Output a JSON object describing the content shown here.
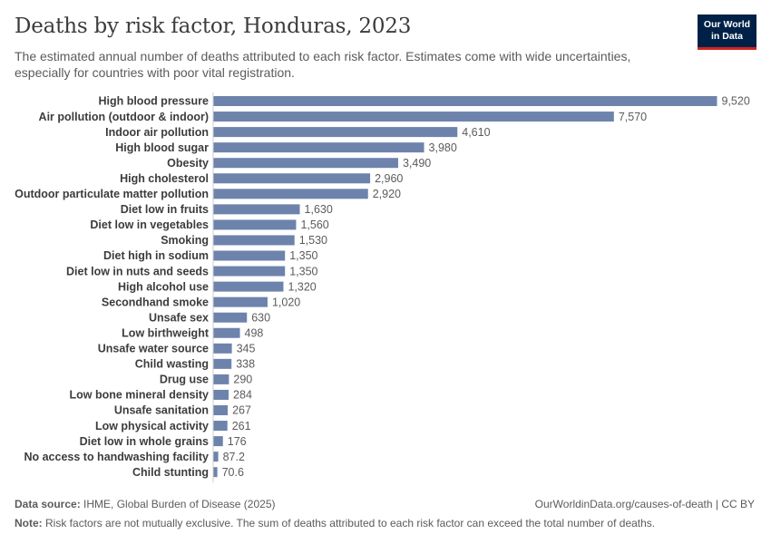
{
  "header": {
    "title": "Deaths by risk factor, Honduras, 2023",
    "subtitle": "The estimated annual number of deaths attributed to each risk factor. Estimates come with wide uncertainties, especially for countries with poor vital registration.",
    "logo_line1": "Our World",
    "logo_line2": "in Data"
  },
  "footer": {
    "source_label": "Data source:",
    "source_text": "IHME, Global Burden of Disease (2025)",
    "url_text": "OurWorldinData.org/causes-of-death | CC BY",
    "note_label": "Note:",
    "note_text": "Risk factors are not mutually exclusive. The sum of deaths attributed to each risk factor can exceed the total number of deaths."
  },
  "colors": {
    "bar": "#6d83ac",
    "axis": "#cccccc",
    "label": "#3c3c3c",
    "value": "#5b5b5b"
  },
  "chart_data": {
    "type": "bar",
    "orientation": "horizontal",
    "xlim": [
      0,
      9520
    ],
    "grid": false,
    "categories": [
      "High blood pressure",
      "Air pollution (outdoor & indoor)",
      "Indoor air pollution",
      "High blood sugar",
      "Obesity",
      "High cholesterol",
      "Outdoor particulate matter pollution",
      "Diet low in fruits",
      "Diet low in vegetables",
      "Smoking",
      "Diet high in sodium",
      "Diet low in nuts and seeds",
      "High alcohol use",
      "Secondhand smoke",
      "Unsafe sex",
      "Low birthweight",
      "Unsafe water source",
      "Child wasting",
      "Drug use",
      "Low bone mineral density",
      "Unsafe sanitation",
      "Low physical activity",
      "Diet low in whole grains",
      "No access to handwashing facility",
      "Child stunting"
    ],
    "values": [
      9520,
      7570,
      4610,
      3980,
      3490,
      2960,
      2920,
      1630,
      1560,
      1530,
      1350,
      1350,
      1320,
      1020,
      630,
      498,
      345,
      338,
      290,
      284,
      267,
      261,
      176,
      87.2,
      70.6
    ],
    "value_labels": [
      "9,520",
      "7,570",
      "4,610",
      "3,980",
      "3,490",
      "2,960",
      "2,920",
      "1,630",
      "1,560",
      "1,530",
      "1,350",
      "1,350",
      "1,320",
      "1,020",
      "630",
      "498",
      "345",
      "338",
      "290",
      "284",
      "267",
      "261",
      "176",
      "87.2",
      "70.6"
    ]
  }
}
